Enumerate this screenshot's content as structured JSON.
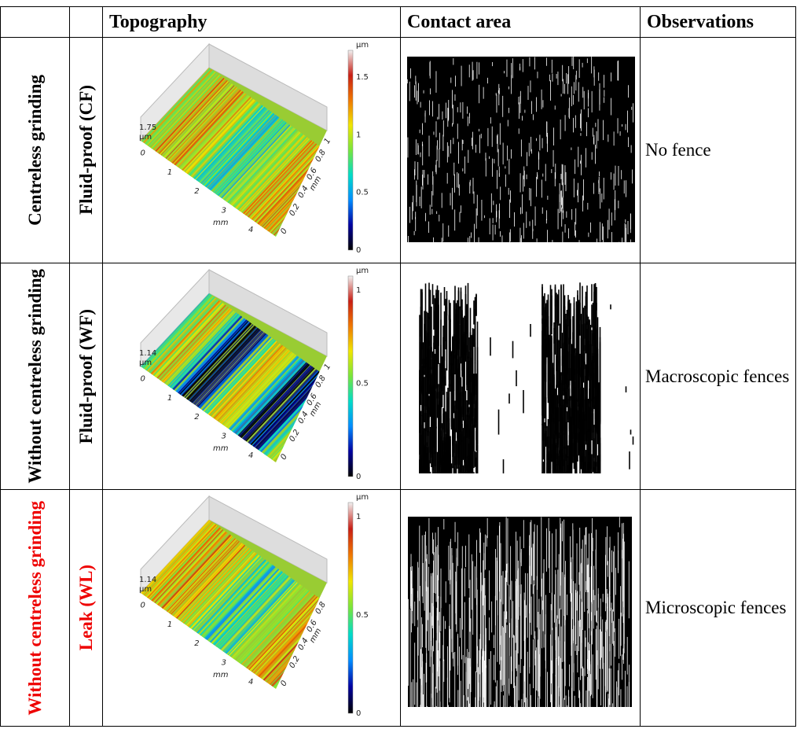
{
  "header": {
    "columns": [
      "Topography",
      "Contact area",
      "Observations"
    ]
  },
  "rows": [
    {
      "process": "Centreless grinding",
      "sample": "Fluid-proof (CF)",
      "observation": "No fence",
      "topography": {
        "colorbar_unit": "µm",
        "colorbar_ticks": [
          "1.5",
          "1",
          "0.5",
          "0"
        ],
        "height_value": "1.75",
        "height_unit": "µm",
        "x_ticks": [
          "0",
          "1",
          "2",
          "3",
          "4"
        ],
        "x_label": "mm",
        "y_ticks": [
          "0",
          "0.2",
          "0.4",
          "0.6",
          "0.8",
          "1"
        ],
        "y_label": "mm"
      }
    },
    {
      "process": "Without centreless grinding",
      "sample": "Fluid-proof (WF)",
      "observation": "Macroscopic fences",
      "topography": {
        "colorbar_unit": "µm",
        "colorbar_ticks": [
          "1",
          "0.5",
          "0"
        ],
        "height_value": "1.14",
        "height_unit": "µm",
        "x_ticks": [
          "0",
          "1",
          "2",
          "3",
          "4"
        ],
        "x_label": "mm",
        "y_ticks": [
          "0",
          "0.2",
          "0.4",
          "0.6",
          "0.8",
          "1"
        ],
        "y_label": "mm"
      }
    },
    {
      "process": "Without centreless grinding",
      "sample": "Leak (WL)",
      "observation": "Microscopic fences",
      "topography": {
        "colorbar_unit": "µm",
        "colorbar_ticks": [
          "1",
          "0.5",
          "0"
        ],
        "height_value": "1.14",
        "height_unit": "µm",
        "x_ticks": [
          "0",
          "1",
          "2",
          "3",
          "4"
        ],
        "x_label": "mm",
        "y_ticks": [
          "0",
          "0.2",
          "0.4",
          "0.6",
          "0.8"
        ],
        "y_label": "mm"
      }
    }
  ]
}
